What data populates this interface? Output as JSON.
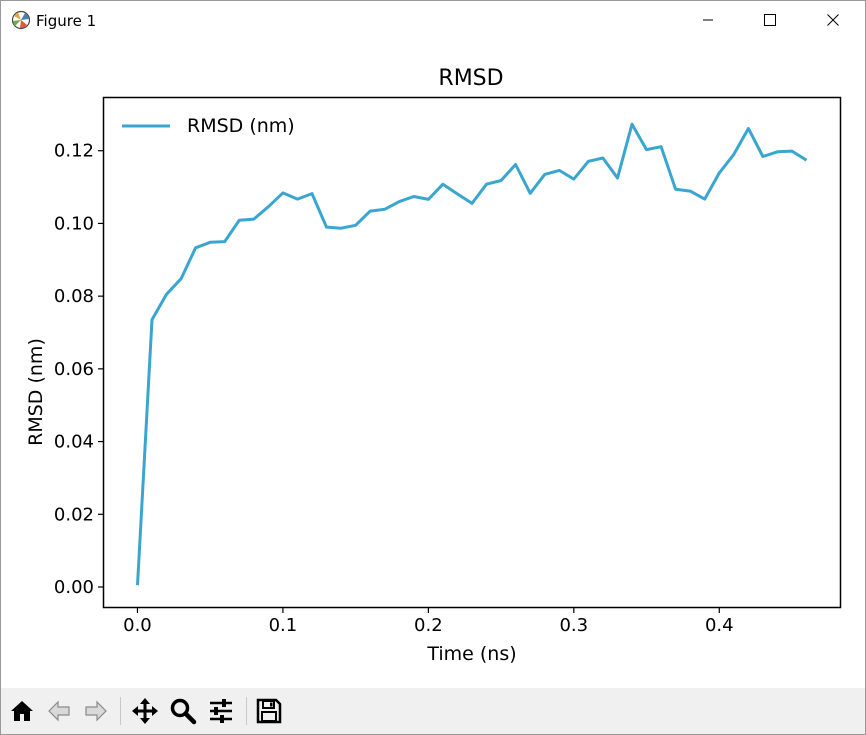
{
  "window": {
    "title": "Figure 1",
    "controls": [
      "minimize-icon",
      "maximize-icon",
      "close-icon"
    ]
  },
  "toolbar": {
    "buttons": [
      "home-icon",
      "back-icon",
      "forward-icon",
      "pan-icon",
      "zoom-icon",
      "configure-subplots-icon",
      "save-icon"
    ]
  },
  "chart_data": {
    "type": "line",
    "title": "RMSD",
    "xlabel": "Time (ns)",
    "ylabel": "RMSD (nm)",
    "xlim": [
      -0.023,
      0.483
    ],
    "ylim": [
      -0.0055,
      0.1345
    ],
    "x_ticks": [
      "0.0",
      "0.1",
      "0.2",
      "0.3",
      "0.4"
    ],
    "y_ticks": [
      "0.00",
      "0.02",
      "0.04",
      "0.06",
      "0.08",
      "0.10",
      "0.12"
    ],
    "x_tick_values": [
      0.0,
      0.1,
      0.2,
      0.3,
      0.4
    ],
    "y_tick_values": [
      0.0,
      0.02,
      0.04,
      0.06,
      0.08,
      0.1,
      0.12
    ],
    "legend_position": "upper-left",
    "grid": false,
    "series": [
      {
        "name": "RMSD (nm)",
        "color": "#3aa6d0",
        "x": [
          0.0,
          0.01,
          0.02,
          0.03,
          0.04,
          0.05,
          0.06,
          0.07,
          0.08,
          0.09,
          0.1,
          0.11,
          0.12,
          0.13,
          0.14,
          0.15,
          0.16,
          0.17,
          0.18,
          0.19,
          0.2,
          0.21,
          0.22,
          0.23,
          0.24,
          0.25,
          0.26,
          0.27,
          0.28,
          0.29,
          0.3,
          0.31,
          0.32,
          0.33,
          0.34,
          0.35,
          0.36,
          0.37,
          0.38,
          0.39,
          0.4,
          0.41,
          0.42,
          0.43,
          0.44,
          0.45,
          0.46
        ],
        "y": [
          0.0005,
          0.0735,
          0.0805,
          0.0848,
          0.0933,
          0.0948,
          0.095,
          0.1009,
          0.1012,
          0.1046,
          0.1084,
          0.1067,
          0.1082,
          0.099,
          0.0987,
          0.0995,
          0.1034,
          0.1039,
          0.106,
          0.1074,
          0.1066,
          0.1108,
          0.1081,
          0.1055,
          0.1108,
          0.1118,
          0.1162,
          0.1083,
          0.1135,
          0.1146,
          0.1122,
          0.1171,
          0.118,
          0.1125,
          0.1273,
          0.1203,
          0.1211,
          0.1094,
          0.1089,
          0.1067,
          0.1139,
          0.119,
          0.1261,
          0.1184,
          0.1197,
          0.1199,
          0.1174
        ]
      }
    ]
  }
}
